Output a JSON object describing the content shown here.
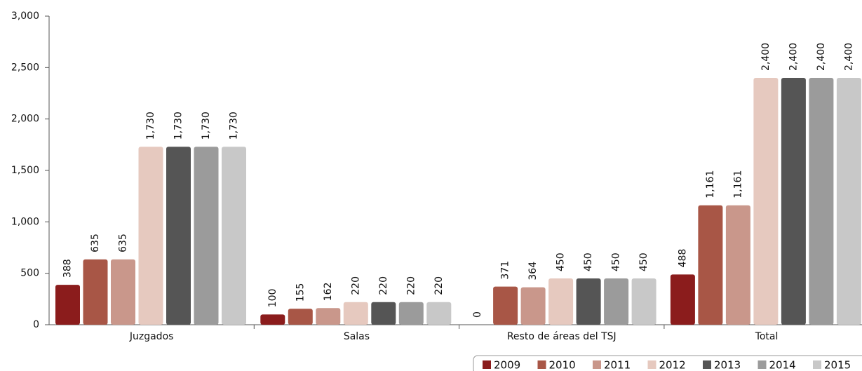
{
  "chart_data": {
    "type": "bar",
    "categories": [
      "Juzgados",
      "Salas",
      "Resto de áreas del TSJ",
      "Total"
    ],
    "series": [
      {
        "name": "2009",
        "color": "#8b1c1c",
        "values": [
          388,
          100,
          0,
          488
        ],
        "value_labels": [
          "388",
          "100",
          "0",
          "488"
        ]
      },
      {
        "name": "2010",
        "color": "#a85646",
        "values": [
          635,
          155,
          371,
          1161
        ],
        "value_labels": [
          "635",
          "155",
          "371",
          "1,161"
        ]
      },
      {
        "name": "2011",
        "color": "#c9978b",
        "values": [
          635,
          162,
          364,
          1161
        ],
        "value_labels": [
          "635",
          "162",
          "364",
          "1,161"
        ]
      },
      {
        "name": "2012",
        "color": "#e6c9bf",
        "values": [
          1730,
          220,
          450,
          2400
        ],
        "value_labels": [
          "1,730",
          "220",
          "450",
          "2,400"
        ]
      },
      {
        "name": "2013",
        "color": "#555555",
        "values": [
          1730,
          220,
          450,
          2400
        ],
        "value_labels": [
          "1,730",
          "220",
          "450",
          "2,400"
        ]
      },
      {
        "name": "2014",
        "color": "#9b9b9b",
        "values": [
          1730,
          220,
          450,
          2400
        ],
        "value_labels": [
          "1,730",
          "220",
          "450",
          "2,400"
        ]
      },
      {
        "name": "2015",
        "color": "#c8c8c8",
        "values": [
          1730,
          220,
          450,
          2400
        ],
        "value_labels": [
          "1,730",
          "220",
          "450",
          "2,400"
        ]
      }
    ],
    "ylim": [
      0,
      3000
    ],
    "yticks": [
      0,
      500,
      {
        "value": 1000,
        "label": "1,000"
      },
      {
        "value": 1500,
        "label": "1,500"
      },
      {
        "value": 2000,
        "label": "2,000"
      },
      {
        "value": 2500,
        "label": "2,500"
      },
      {
        "value": 3000,
        "label": "3,000"
      }
    ],
    "legend": "bottom-right"
  }
}
